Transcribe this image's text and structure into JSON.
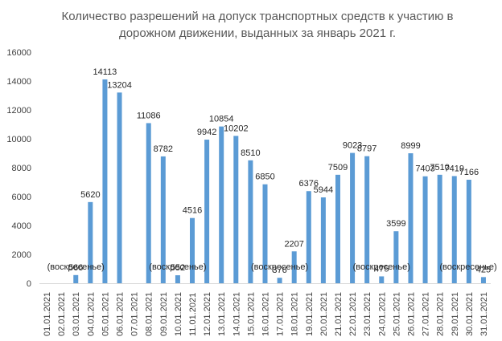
{
  "chart_data": {
    "type": "bar",
    "title_line1": "Количество разрешений на допуск транспортных средств к участию в",
    "title_line2": "дорожном движении, выданных за январь 2021 г.",
    "categories": [
      "01.01.2021",
      "02.01.2021",
      "03.01.2021",
      "04.01.2021",
      "05.01.2021",
      "06.01.2021",
      "07.01.2021",
      "08.01.2021",
      "09.01.2021",
      "10.01.2021",
      "11.01.2021",
      "12.01.2021",
      "13.01.2021",
      "14.01.2021",
      "15.01.2021",
      "16.01.2021",
      "17.01.2021",
      "18.01.2021",
      "19.01.2021",
      "20.01.2021",
      "21.01.2021",
      "22.01.2021",
      "23.01.2021",
      "24.01.2021",
      "25.01.2021",
      "26.01.2021",
      "27.01.2021",
      "28.01.2021",
      "29.01.2021",
      "30.01.2021",
      "31.01.2021"
    ],
    "values": [
      0,
      0,
      566,
      5620,
      14113,
      13204,
      0,
      11086,
      8782,
      552,
      4516,
      9942,
      10854,
      10202,
      8510,
      6850,
      376,
      2207,
      6376,
      5944,
      7509,
      9023,
      8797,
      475,
      3599,
      8999,
      7403,
      7510,
      7419,
      7166,
      425
    ],
    "labeled": [
      false,
      false,
      true,
      true,
      true,
      true,
      false,
      true,
      true,
      true,
      true,
      true,
      true,
      true,
      true,
      true,
      true,
      true,
      true,
      true,
      true,
      true,
      true,
      true,
      true,
      true,
      true,
      true,
      true,
      true,
      true
    ],
    "yticks": [
      0,
      2000,
      4000,
      6000,
      8000,
      10000,
      12000,
      14000,
      16000
    ],
    "ylim": [
      0,
      16000
    ],
    "annotations": [
      {
        "index": 2,
        "text": "(воскресенье)"
      },
      {
        "index": 9,
        "text": "(воскресенье)"
      },
      {
        "index": 16,
        "text": "(воскресенье)"
      },
      {
        "index": 23,
        "text": "(воскресенье)"
      },
      {
        "index": 30,
        "text": "(воскресенье)"
      }
    ],
    "bar_color": "#5B9BD5",
    "grid": false,
    "legend": "none"
  }
}
